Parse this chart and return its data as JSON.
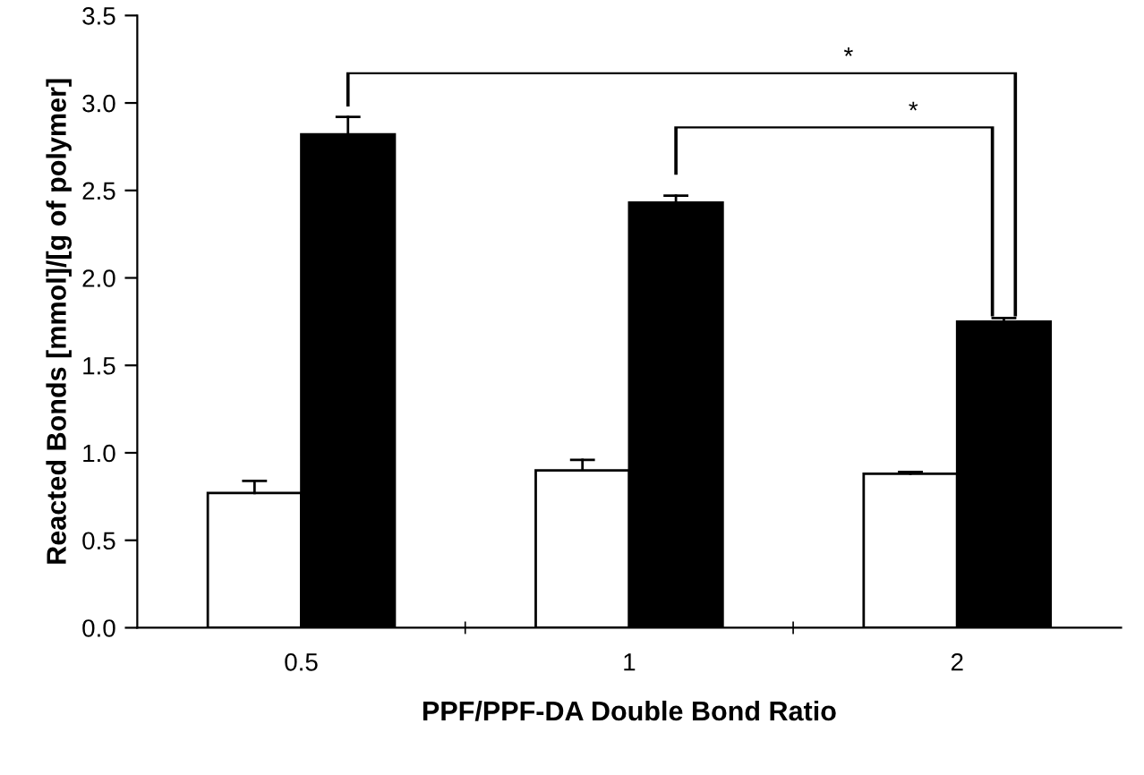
{
  "chart_data": {
    "type": "bar",
    "xlabel": "PPF/PPF-DA Double Bond Ratio",
    "ylabel": "Reacted Bonds [mmol]/[g of polymer]",
    "categories": [
      "0.5",
      "1",
      "2"
    ],
    "series": [
      {
        "color": "#ffffff",
        "values": [
          0.77,
          0.9,
          0.88
        ],
        "errors": [
          [
            0.77,
            0.84
          ],
          [
            0.9,
            0.96
          ],
          [
            0.88,
            0.89
          ]
        ]
      },
      {
        "color": "#000000",
        "values": [
          2.82,
          2.43,
          1.75
        ],
        "errors": [
          [
            2.82,
            2.92
          ],
          [
            2.43,
            2.47
          ],
          [
            1.75,
            1.77
          ]
        ]
      }
    ],
    "ylim": [
      0,
      3.5
    ],
    "yticks": [
      {
        "value": 0,
        "label": "0.0"
      },
      {
        "value": 0.5,
        "label": "0.5"
      },
      {
        "value": 1,
        "label": "1.0"
      },
      {
        "value": 1.5,
        "label": "1.5"
      },
      {
        "value": 2,
        "label": "2.0"
      },
      {
        "value": 2.5,
        "label": "2.5"
      },
      {
        "value": 3,
        "label": "3.0"
      },
      {
        "value": 3.5,
        "label": "3.5"
      }
    ],
    "grid": false,
    "legend": false,
    "annotations": [
      "*",
      "*"
    ]
  }
}
